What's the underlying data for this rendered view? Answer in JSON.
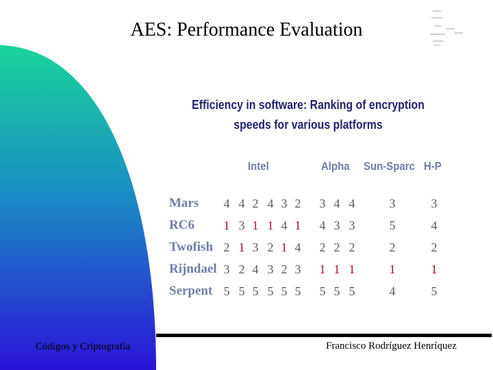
{
  "slide": {
    "title": "AES: Performance Evaluation",
    "footer_left": "Códigos y Criptografía",
    "footer_right": "Francisco Rodríguez Henríquez",
    "colors": {
      "gradient_top": "#1ad49a",
      "gradient_bottom": "#2a14d8",
      "highlight": "#a01222",
      "header_text": "#23236e",
      "label_text": "#6f7ea6"
    }
  },
  "table": {
    "heading_line1": "Efficiency in software: Ranking of encryption",
    "heading_line2": "speeds for various platforms",
    "platforms": [
      "Intel",
      "Alpha",
      "Sun-Sparc",
      "H-P"
    ],
    "rows": [
      {
        "name": "Mars",
        "ranks": [
          "4",
          "4",
          "2",
          "4",
          "3",
          "2",
          "3",
          "4",
          "4",
          "3",
          "3"
        ],
        "highlight": []
      },
      {
        "name": "RC6",
        "ranks": [
          "1",
          "3",
          "1",
          "1",
          "4",
          "1",
          "4",
          "3",
          "3",
          "5",
          "4"
        ],
        "highlight": [
          0,
          2,
          3,
          5
        ]
      },
      {
        "name": "Twofish",
        "ranks": [
          "2",
          "1",
          "3",
          "2",
          "1",
          "4",
          "2",
          "2",
          "2",
          "2",
          "2"
        ],
        "highlight": [
          1,
          4
        ]
      },
      {
        "name": "Rijndael",
        "ranks": [
          "3",
          "2",
          "4",
          "3",
          "2",
          "3",
          "1",
          "1",
          "1",
          "1",
          "1"
        ],
        "highlight": [
          6,
          7,
          8,
          9,
          10
        ]
      },
      {
        "name": "Serpent",
        "ranks": [
          "5",
          "5",
          "5",
          "5",
          "5",
          "5",
          "5",
          "5",
          "5",
          "4",
          "5"
        ],
        "highlight": []
      }
    ]
  }
}
